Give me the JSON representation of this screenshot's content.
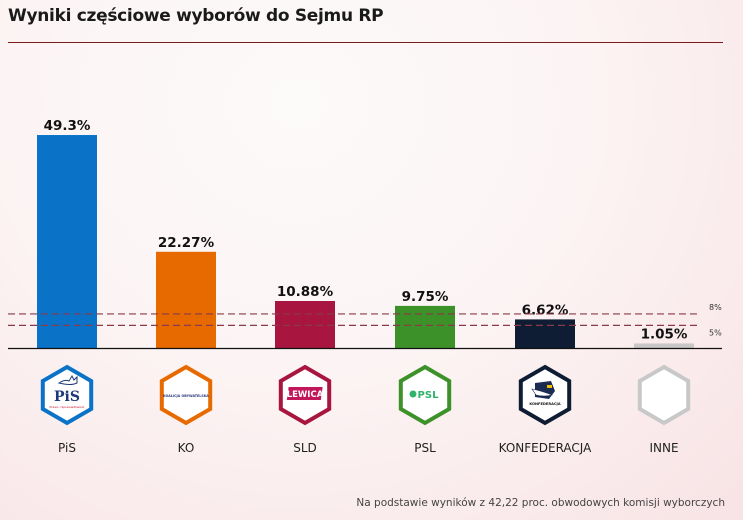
{
  "header": {
    "title": "Wyniki częściowe wyborów do Sejmu RP"
  },
  "chart_data": {
    "type": "bar",
    "title": "Wyniki częściowe wyborów do Sejmu RP",
    "xlabel": "",
    "ylabel": "",
    "ylim": [
      0,
      50
    ],
    "grid": false,
    "categories": [
      "PiS",
      "KO",
      "SLD",
      "PSL",
      "KONFEDERACJA",
      "INNE"
    ],
    "values": [
      49.3,
      22.27,
      10.88,
      9.75,
      6.62,
      1.05
    ],
    "value_labels": [
      "49.3%",
      "22.27%",
      "10.88%",
      "9.75%",
      "6.62%",
      "1.05%"
    ],
    "colors": [
      "#0a73c7",
      "#e66a00",
      "#a8163f",
      "#3c9128",
      "#0e1d33",
      "#c8c8c8"
    ],
    "thresholds": [
      {
        "value": 8,
        "label": "8%"
      },
      {
        "value": 5,
        "label": "5%"
      }
    ],
    "threshold_color": "#8a3a48"
  },
  "logos": [
    {
      "party": "PiS",
      "text": "PiS",
      "subtext": "Prawo i Sprawiedliwość",
      "icon": "pis-logo-icon"
    },
    {
      "party": "KO",
      "text": "KOALICJA OBYWATELSKA",
      "icon": "ko-logo-icon"
    },
    {
      "party": "SLD",
      "text": "LEWICA",
      "icon": "lewica-logo-icon"
    },
    {
      "party": "PSL",
      "text": "PSL",
      "icon": "psl-logo-icon"
    },
    {
      "party": "KONFEDERACJA",
      "text": "KONFEDERACJA",
      "icon": "konfederacja-logo-icon"
    },
    {
      "party": "INNE",
      "text": "",
      "icon": "empty-hexagon-icon"
    }
  ],
  "footnote": "Na podstawie wyników z 42,22 proc. obwodowych komisji wyborczych"
}
